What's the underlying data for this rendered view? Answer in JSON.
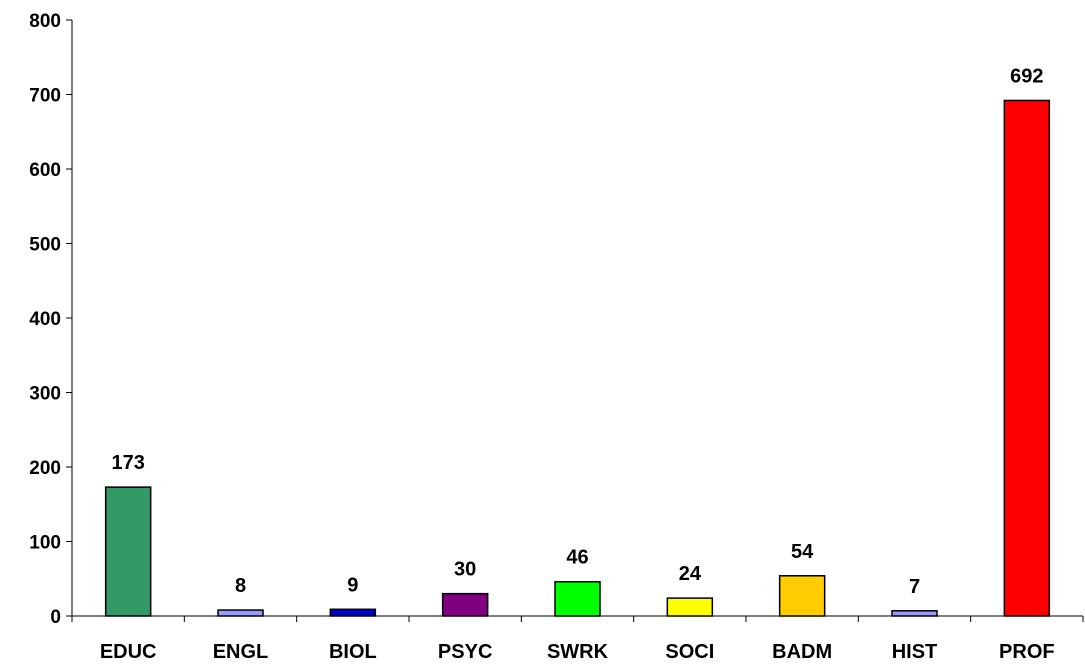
{
  "chart_data": {
    "type": "bar",
    "categories": [
      "EDUC",
      "ENGL",
      "BIOL",
      "PSYC",
      "SWRK",
      "SOCI",
      "BADM",
      "HIST",
      "PROF"
    ],
    "values": [
      173,
      8,
      9,
      30,
      46,
      24,
      54,
      7,
      692
    ],
    "colors": [
      "#339966",
      "#9999ff",
      "#0000cc",
      "#800080",
      "#00ff00",
      "#ffff00",
      "#ffcc00",
      "#9999ff",
      "#ff0000"
    ],
    "ylim": [
      0,
      800
    ],
    "yticks": [
      0,
      100,
      200,
      300,
      400,
      500,
      600,
      700,
      800
    ],
    "title": "",
    "xlabel": "",
    "ylabel": "",
    "grid": false,
    "data_labels": true
  }
}
